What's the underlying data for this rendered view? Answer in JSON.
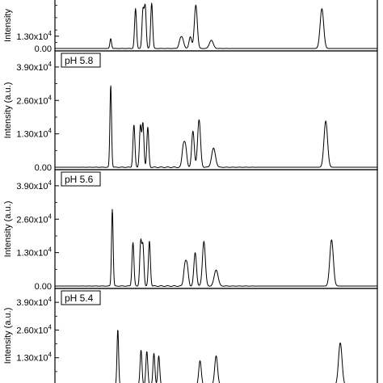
{
  "chart_data": [
    {
      "type": "line",
      "label": "",
      "ylabel": "Intensity",
      "yticks": [
        "1.30x10",
        "0.00"
      ],
      "yticks_exp": [
        "4",
        ""
      ],
      "ytick_values": [
        13000,
        0
      ],
      "ylim": [
        0,
        52000
      ],
      "xlim": [
        0,
        100
      ],
      "peaks": [
        {
          "x": 17.3,
          "y": 10500,
          "w": 0.25
        },
        {
          "x": 25.0,
          "y": 42000,
          "w": 0.3
        },
        {
          "x": 27.3,
          "y": 40000,
          "w": 0.3
        },
        {
          "x": 28.0,
          "y": 44000,
          "w": 0.3
        },
        {
          "x": 30.0,
          "y": 48000,
          "w": 0.3
        },
        {
          "x": 38.9,
          "y": 8500,
          "w": 0.45
        },
        {
          "x": 39.6,
          "y": 8500,
          "w": 0.45
        },
        {
          "x": 42.0,
          "y": 12500,
          "w": 0.4
        },
        {
          "x": 43.7,
          "y": 46000,
          "w": 0.45
        },
        {
          "x": 48.5,
          "y": 8700,
          "w": 0.6
        },
        {
          "x": 82.8,
          "y": 42000,
          "w": 0.55
        }
      ]
    },
    {
      "type": "line",
      "label": "pH 5.8",
      "ylabel": "Intensity (a.u.)",
      "yticks": [
        "3.90x10",
        "2.60x10",
        "1.30x10",
        "0.00"
      ],
      "yticks_exp": [
        "4",
        "4",
        "4",
        ""
      ],
      "ytick_values": [
        39000,
        26000,
        13000,
        0
      ],
      "ylim": [
        0,
        44000
      ],
      "xlim": [
        0,
        100
      ],
      "peaks": [
        {
          "x": 17.3,
          "y": 32000,
          "w": 0.25
        },
        {
          "x": 24.5,
          "y": 16500,
          "w": 0.3
        },
        {
          "x": 26.5,
          "y": 16000,
          "w": 0.3
        },
        {
          "x": 27.3,
          "y": 17000,
          "w": 0.3
        },
        {
          "x": 28.8,
          "y": 15500,
          "w": 0.3
        },
        {
          "x": 39.8,
          "y": 7500,
          "w": 0.4
        },
        {
          "x": 40.5,
          "y": 7500,
          "w": 0.4
        },
        {
          "x": 42.8,
          "y": 14000,
          "w": 0.4
        },
        {
          "x": 44.7,
          "y": 18500,
          "w": 0.45
        },
        {
          "x": 49.2,
          "y": 7400,
          "w": 0.6
        },
        {
          "x": 84.0,
          "y": 18000,
          "w": 0.55
        }
      ]
    },
    {
      "type": "line",
      "label": "pH 5.6",
      "ylabel": "Intensity (a.u.)",
      "yticks": [
        "3.90x10",
        "2.60x10",
        "1.30x10",
        "0.00"
      ],
      "yticks_exp": [
        "4",
        "4",
        "4",
        ""
      ],
      "ytick_values": [
        39000,
        26000,
        13000,
        0
      ],
      "ylim": [
        0,
        44000
      ],
      "xlim": [
        0,
        100
      ],
      "peaks": [
        {
          "x": 17.8,
          "y": 30000,
          "w": 0.25
        },
        {
          "x": 24.2,
          "y": 17000,
          "w": 0.3
        },
        {
          "x": 26.6,
          "y": 17000,
          "w": 0.3
        },
        {
          "x": 27.3,
          "y": 15500,
          "w": 0.3
        },
        {
          "x": 29.3,
          "y": 17500,
          "w": 0.3
        },
        {
          "x": 40.3,
          "y": 7500,
          "w": 0.4
        },
        {
          "x": 41.0,
          "y": 7200,
          "w": 0.4
        },
        {
          "x": 43.5,
          "y": 13000,
          "w": 0.4
        },
        {
          "x": 46.2,
          "y": 17500,
          "w": 0.45
        },
        {
          "x": 50.0,
          "y": 6300,
          "w": 0.6
        },
        {
          "x": 85.8,
          "y": 18000,
          "w": 0.55
        }
      ]
    },
    {
      "type": "line",
      "label": "pH 5.4",
      "ylabel": "Intensity (a.u.)",
      "yticks": [
        "3.90x10",
        "2.60x10",
        "1.30x10"
      ],
      "yticks_exp": [
        "4",
        "4",
        "4"
      ],
      "ytick_values": [
        39000,
        26000,
        13000
      ],
      "ylim": [
        0,
        44000
      ],
      "xlim": [
        0,
        100
      ],
      "peaks": [
        {
          "x": 19.5,
          "y": 26500,
          "w": 0.25
        },
        {
          "x": 26.7,
          "y": 16500,
          "w": 0.3
        },
        {
          "x": 28.5,
          "y": 16000,
          "w": 0.3
        },
        {
          "x": 30.7,
          "y": 15000,
          "w": 0.3
        },
        {
          "x": 32.2,
          "y": 14000,
          "w": 0.3
        },
        {
          "x": 45.0,
          "y": 11500,
          "w": 0.4
        },
        {
          "x": 50.0,
          "y": 14000,
          "w": 0.45
        },
        {
          "x": 88.5,
          "y": 20000,
          "w": 0.55
        }
      ]
    }
  ]
}
